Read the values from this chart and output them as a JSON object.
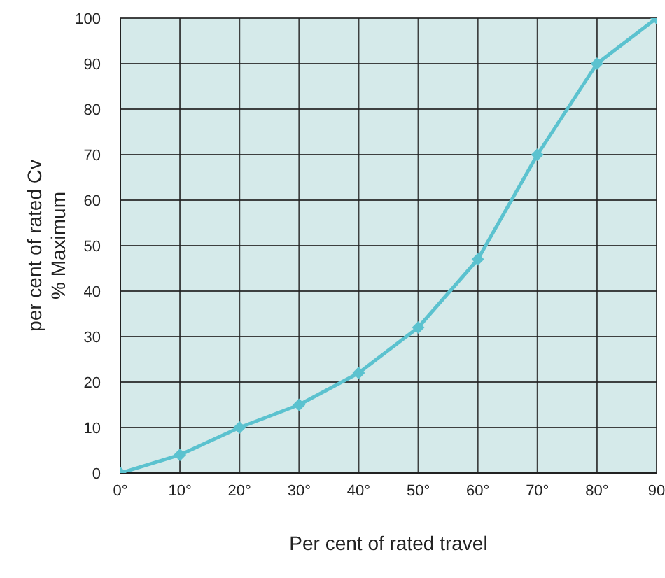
{
  "chart_data": {
    "type": "line",
    "xlabel": "Per cent of rated travel",
    "ylabel": "per cent of rated Cv\n% Maximum",
    "x": [
      0,
      10,
      20,
      30,
      40,
      50,
      60,
      70,
      80,
      90
    ],
    "series": [
      {
        "color": "#5bc2cf",
        "values": [
          0,
          4,
          10,
          15,
          22,
          32,
          47,
          70,
          90,
          100
        ]
      }
    ],
    "xlim": [
      0,
      90
    ],
    "xticks": [
      {
        "value": 0,
        "label": "0°"
      },
      {
        "value": 10,
        "label": "10°"
      },
      {
        "value": 20,
        "label": "20°"
      },
      {
        "value": 30,
        "label": "30°"
      },
      {
        "value": 40,
        "label": "40°"
      },
      {
        "value": 50,
        "label": "50°"
      },
      {
        "value": 60,
        "label": "60°"
      },
      {
        "value": 70,
        "label": "70°"
      },
      {
        "value": 80,
        "label": "80°"
      },
      90
    ],
    "ylim": [
      0,
      100
    ],
    "yticks": [
      0,
      10,
      20,
      30,
      40,
      50,
      60,
      70,
      80,
      90,
      100
    ],
    "grid": true,
    "marker": "diamond",
    "line_style": "solid"
  }
}
